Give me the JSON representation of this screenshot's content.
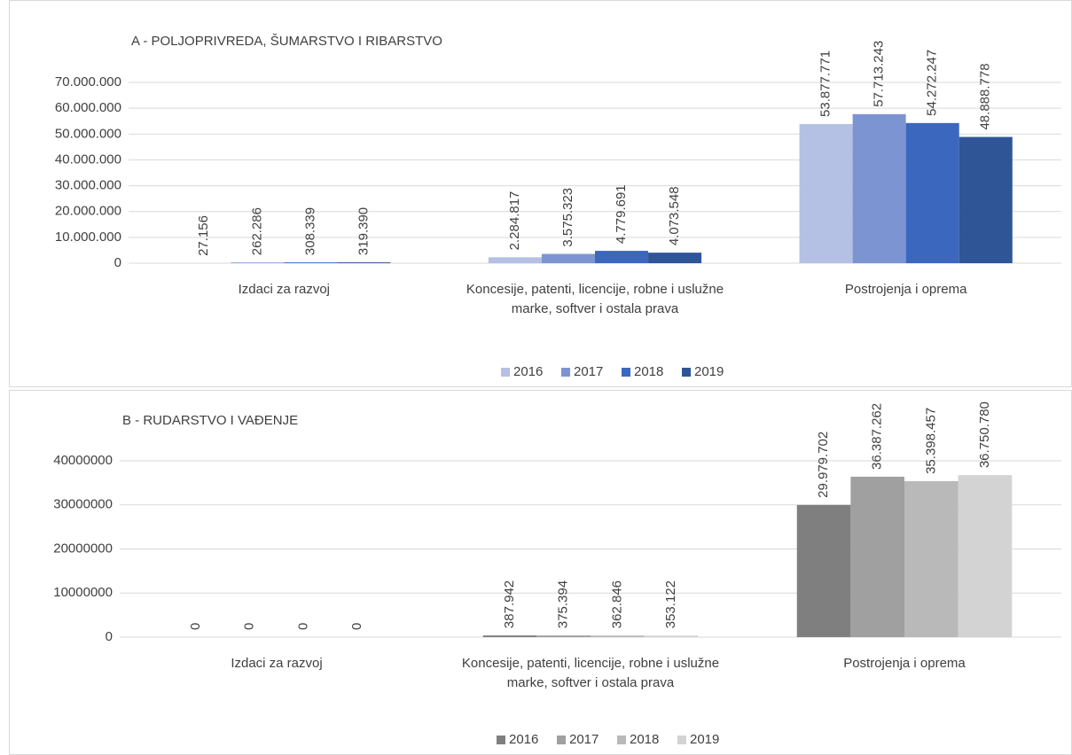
{
  "chart_data": [
    {
      "type": "bar",
      "title": "A - POLJOPRIVREDA, ŠUMARSTVO I RIBARSTVO",
      "categories": [
        "Izdaci za razvoj",
        "Koncesije, patenti, licencije, robne i uslužne marke, softver i ostala prava",
        "Postrojenja i oprema"
      ],
      "series": [
        {
          "name": "2016",
          "color": "#b4c1e4",
          "values": [
            27156,
            2284817,
            53877771
          ],
          "value_labels": [
            "27.156",
            "2.284.817",
            "53.877.771"
          ]
        },
        {
          "name": "2017",
          "color": "#7d94d2",
          "values": [
            262286,
            3575323,
            57713243
          ],
          "value_labels": [
            "262.286",
            "3.575.323",
            "57.713.243"
          ]
        },
        {
          "name": "2018",
          "color": "#3c67be",
          "values": [
            308339,
            4779691,
            54272247
          ],
          "value_labels": [
            "308.339",
            "4.779.691",
            "54.272.247"
          ]
        },
        {
          "name": "2019",
          "color": "#2f5597",
          "values": [
            319390,
            4073548,
            48888778
          ],
          "value_labels": [
            "319.390",
            "4.073.548",
            "48.888.778"
          ]
        }
      ],
      "ylim": [
        0,
        70000000
      ],
      "yticks": [
        0,
        {
          "value": 10000000,
          "label": "10.000.000"
        },
        {
          "value": 20000000,
          "label": "20.000.000"
        },
        {
          "value": 30000000,
          "label": "30.000.000"
        },
        {
          "value": 40000000,
          "label": "40.000.000"
        },
        {
          "value": 50000000,
          "label": "50.000.000"
        },
        {
          "value": 60000000,
          "label": "60.000.000"
        },
        {
          "value": 70000000,
          "label": "70.000.000"
        }
      ],
      "grid": true,
      "legend": "bottom"
    },
    {
      "type": "bar",
      "title": "B - RUDARSTVO I VAĐENJE",
      "categories": [
        "Izdaci za razvoj",
        "Koncesije, patenti, licencije, robne i uslužne marke, softver i ostala prava",
        "Postrojenja i oprema"
      ],
      "series": [
        {
          "name": "2016",
          "color": "#7f7f7f",
          "values": [
            0,
            387942,
            29979702
          ],
          "value_labels": [
            "0",
            "387.942",
            "29.979.702"
          ]
        },
        {
          "name": "2017",
          "color": "#a0a0a0",
          "values": [
            0,
            375394,
            36387262
          ],
          "value_labels": [
            "0",
            "375.394",
            "36.387.262"
          ]
        },
        {
          "name": "2018",
          "color": "#b9b9b9",
          "values": [
            0,
            362846,
            35398457
          ],
          "value_labels": [
            "0",
            "362.846",
            "35.398.457"
          ]
        },
        {
          "name": "2019",
          "color": "#d3d3d3",
          "values": [
            0,
            353122,
            36750780
          ],
          "value_labels": [
            "0",
            "353.122",
            "36.750.780"
          ]
        }
      ],
      "ylim": [
        0,
        40000000
      ],
      "yticks": [
        0,
        10000000,
        20000000,
        30000000,
        40000000
      ],
      "grid": true,
      "legend": "bottom"
    }
  ]
}
